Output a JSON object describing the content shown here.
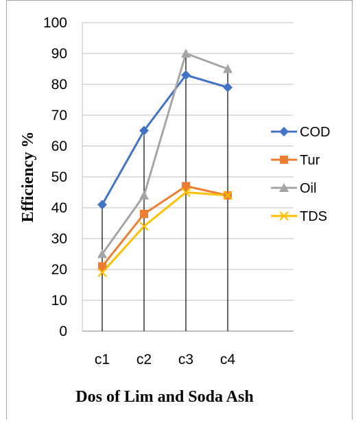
{
  "chart_data": {
    "type": "line",
    "categories": [
      "c1",
      "c2",
      "c3",
      "c4"
    ],
    "series": [
      {
        "name": "COD",
        "values": [
          41,
          65,
          83,
          79
        ],
        "color": "#4472c4",
        "marker": "diamond"
      },
      {
        "name": "Tur",
        "values": [
          21,
          38,
          47,
          44
        ],
        "color": "#ed7d31",
        "marker": "square"
      },
      {
        "name": "Oil",
        "values": [
          25,
          44,
          90,
          85
        ],
        "color": "#a5a5a5",
        "marker": "triangle"
      },
      {
        "name": "TDS",
        "values": [
          19,
          34,
          45,
          44
        ],
        "color": "#ffc000",
        "marker": "x"
      }
    ],
    "ylim": [
      0,
      100
    ],
    "yticks": [
      0,
      10,
      20,
      30,
      40,
      50,
      60,
      70,
      80,
      90,
      100
    ],
    "xlabel": "Dos of Lim and Soda Ash",
    "ylabel": "Efficiency %",
    "grid": true,
    "drop_lines": true,
    "legend_position": "right"
  }
}
